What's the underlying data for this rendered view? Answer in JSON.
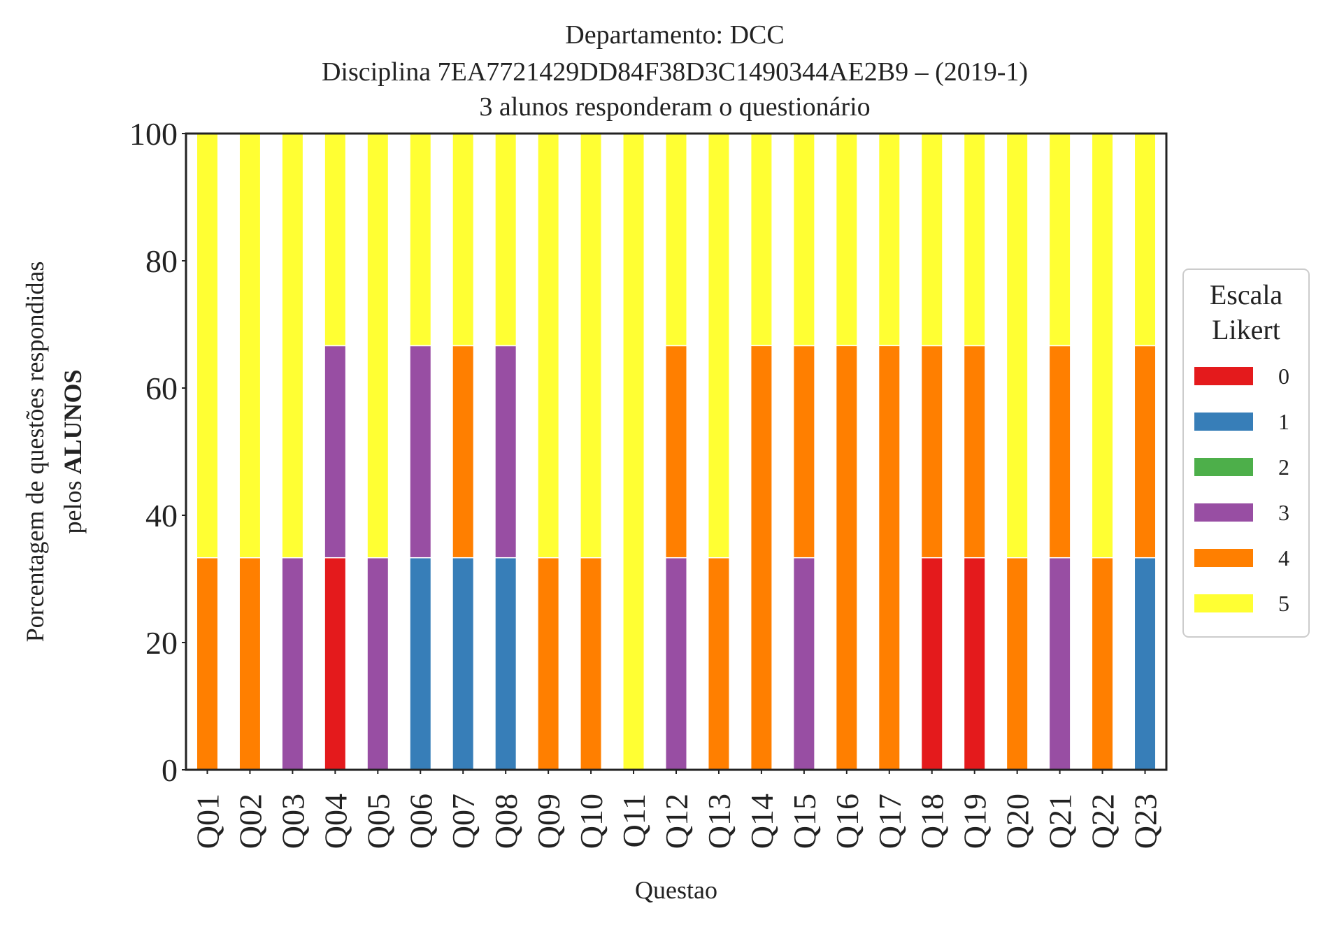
{
  "chart_data": {
    "type": "bar",
    "stacked": true,
    "title_lines": [
      "Departamento: DCC",
      "Disciplina 7EA7721429DD84F38D3C1490344AE2B9 – (2019-1)",
      "3 alunos responderam o questionário"
    ],
    "xlabel": "Questao",
    "ylabel_line1": "Porcentagem de questões respondidas",
    "ylabel_line2_prefix": "pelos ",
    "ylabel_line2_bold": "ALUNOS",
    "ylim": [
      0,
      100
    ],
    "yticks": [
      "0",
      "20",
      "40",
      "60",
      "80",
      "100"
    ],
    "grid": false,
    "legend_position": "right-center",
    "legend_title_lines": [
      "Escala",
      "Likert"
    ],
    "categories": [
      "Q01",
      "Q02",
      "Q03",
      "Q04",
      "Q05",
      "Q06",
      "Q07",
      "Q08",
      "Q09",
      "Q10",
      "Q11",
      "Q12",
      "Q13",
      "Q14",
      "Q15",
      "Q16",
      "Q17",
      "Q18",
      "Q19",
      "Q20",
      "Q21",
      "Q22",
      "Q23"
    ],
    "series": [
      {
        "name": "0",
        "color": "#e41a1c",
        "values": [
          0,
          0,
          0,
          33.33,
          0,
          0,
          0,
          0,
          0,
          0,
          0,
          0,
          0,
          0,
          0,
          0,
          0,
          33.33,
          33.33,
          0,
          0,
          0,
          0
        ]
      },
      {
        "name": "1",
        "color": "#377eb8",
        "values": [
          0,
          0,
          0,
          0,
          0,
          33.33,
          33.33,
          33.33,
          0,
          0,
          0,
          0,
          0,
          0,
          0,
          0,
          0,
          0,
          0,
          0,
          0,
          0,
          33.33
        ]
      },
      {
        "name": "2",
        "color": "#4daf4a",
        "values": [
          0,
          0,
          0,
          0,
          0,
          0,
          0,
          0,
          0,
          0,
          0,
          0,
          0,
          0,
          0,
          0,
          0,
          0,
          0,
          0,
          0,
          0,
          0
        ]
      },
      {
        "name": "3",
        "color": "#984ea3",
        "values": [
          0,
          0,
          33.33,
          33.33,
          33.33,
          33.33,
          0,
          33.33,
          0,
          0,
          0,
          33.33,
          0,
          0,
          33.33,
          0,
          0,
          0,
          0,
          0,
          33.33,
          0,
          0
        ]
      },
      {
        "name": "4",
        "color": "#ff7f00",
        "values": [
          33.33,
          33.33,
          0,
          0,
          0,
          0,
          33.33,
          0,
          33.33,
          33.33,
          0,
          33.33,
          33.33,
          66.67,
          33.33,
          66.67,
          66.67,
          33.33,
          33.33,
          33.33,
          33.33,
          33.33,
          33.33
        ]
      },
      {
        "name": "5",
        "color": "#ffff33",
        "values": [
          66.67,
          66.67,
          66.67,
          33.33,
          66.67,
          33.33,
          33.33,
          33.33,
          66.67,
          66.67,
          100,
          33.33,
          66.67,
          33.33,
          33.33,
          33.33,
          33.33,
          33.33,
          33.33,
          66.67,
          33.33,
          66.67,
          33.33
        ]
      }
    ]
  }
}
